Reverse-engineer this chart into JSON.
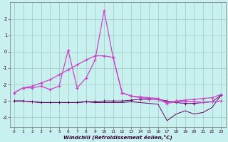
{
  "xlabel": "Windchill (Refroidissement éolien,°C)",
  "bg_color": "#c8f0ee",
  "grid_color": "#a0c8c8",
  "line_color_light": "#cc44cc",
  "line_color_dark": "#660066",
  "x": [
    0,
    1,
    2,
    3,
    4,
    5,
    6,
    7,
    8,
    9,
    10,
    11,
    12,
    13,
    14,
    15,
    16,
    17,
    18,
    19,
    20,
    21,
    22,
    23
  ],
  "y_spiky": [
    -2.5,
    -2.2,
    -2.2,
    -2.1,
    -2.3,
    -2.1,
    0.1,
    -2.2,
    -1.6,
    -0.5,
    2.5,
    -0.35,
    -2.5,
    -2.7,
    -2.8,
    -2.85,
    -2.9,
    -3.15,
    -3.05,
    -3.05,
    -3.05,
    -3.1,
    -3.05,
    -3.0
  ],
  "y_rising": [
    -2.5,
    -2.2,
    -2.1,
    -1.9,
    -1.7,
    -1.4,
    -1.1,
    -0.8,
    -0.5,
    -0.25,
    -0.25,
    -0.35,
    -2.5,
    -2.7,
    -2.75,
    -2.8,
    -2.85,
    -3.1,
    -3.0,
    -2.95,
    -2.9,
    -2.85,
    -2.8,
    -2.6
  ],
  "y_flat1": [
    -3.0,
    -3.0,
    -3.05,
    -3.1,
    -3.1,
    -3.1,
    -3.1,
    -3.1,
    -3.05,
    -3.05,
    -3.0,
    -3.0,
    -3.0,
    -2.95,
    -2.9,
    -2.9,
    -2.9,
    -3.0,
    -3.1,
    -3.15,
    -3.15,
    -3.1,
    -3.05,
    -2.65
  ],
  "y_flat2": [
    -3.0,
    -3.0,
    -3.05,
    -3.1,
    -3.1,
    -3.1,
    -3.1,
    -3.1,
    -3.05,
    -3.1,
    -3.1,
    -3.1,
    -3.1,
    -3.05,
    -3.1,
    -3.15,
    -3.2,
    -4.2,
    -3.8,
    -3.6,
    -3.8,
    -3.7,
    -3.4,
    -2.65
  ],
  "ylim": [
    -4.6,
    3.0
  ],
  "xlim": [
    -0.5,
    23.5
  ],
  "yticks": [
    -4,
    -3,
    -2,
    -1,
    0,
    1,
    2
  ],
  "xticks": [
    0,
    1,
    2,
    3,
    4,
    5,
    6,
    7,
    8,
    9,
    10,
    11,
    12,
    13,
    14,
    15,
    16,
    17,
    18,
    19,
    20,
    21,
    22,
    23
  ]
}
